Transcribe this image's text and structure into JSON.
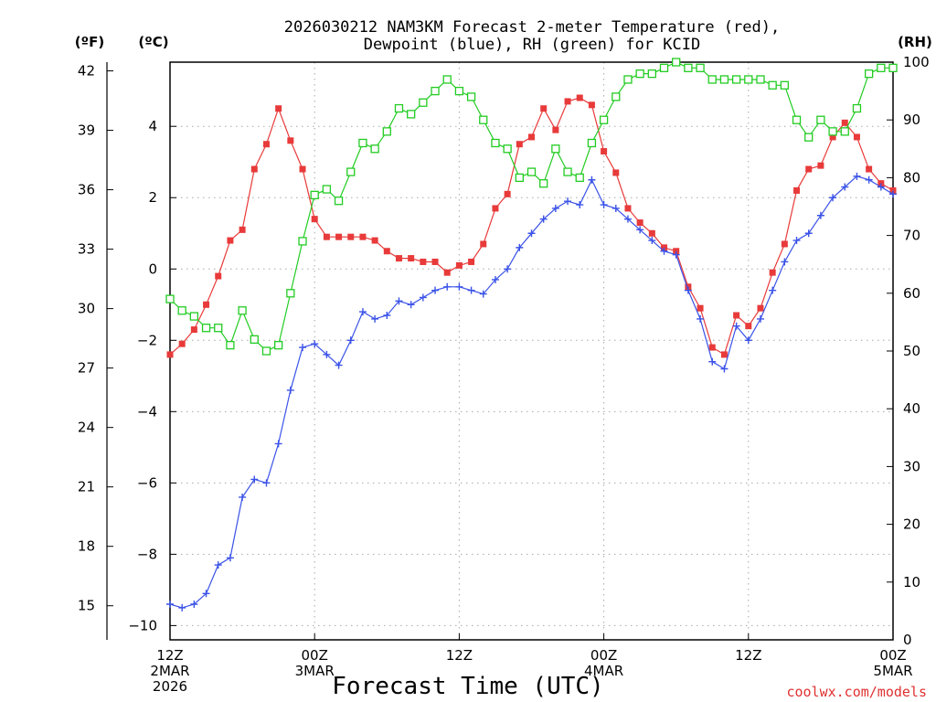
{
  "chart_data": {
    "type": "line",
    "title": [
      "2026030212 NAM3KM Forecast 2-meter Temperature (red),",
      "Dewpoint (blue), RH (green) for KCID"
    ],
    "xlabel": "Forecast Time (UTC)",
    "credit": "coolwx.com/models",
    "units": {
      "fahrenheit": "(ºF)",
      "celsius": "(ºC)",
      "rh": "(RH)"
    },
    "xlim": [
      0,
      60
    ],
    "xticks": [
      {
        "x": 0,
        "lines": [
          "12Z",
          "2MAR",
          "2026"
        ]
      },
      {
        "x": 12,
        "lines": [
          "00Z",
          "3MAR"
        ]
      },
      {
        "x": 24,
        "lines": [
          "12Z"
        ]
      },
      {
        "x": 36,
        "lines": [
          "00Z",
          "4MAR"
        ]
      },
      {
        "x": 48,
        "lines": [
          "12Z"
        ]
      },
      {
        "x": 60,
        "lines": [
          "00Z",
          "5MAR"
        ]
      }
    ],
    "ylim_c": [
      -10.4,
      5.8
    ],
    "yticks_c": [
      "4",
      "2",
      "0",
      "−2",
      "−4",
      "−6",
      "−8",
      "−10"
    ],
    "yticks_c_values": [
      4,
      2,
      0,
      -2,
      -4,
      -6,
      -8,
      -10
    ],
    "yticks_f": [
      "42",
      "39",
      "36",
      "33",
      "30",
      "27",
      "24",
      "21",
      "18",
      "15"
    ],
    "yticks_f_values": [
      42,
      39,
      36,
      33,
      30,
      27,
      24,
      21,
      18,
      15
    ],
    "ylim_rh": [
      0,
      100
    ],
    "yticks_rh": [
      "100",
      "90",
      "80",
      "70",
      "60",
      "50",
      "40",
      "30",
      "20",
      "10",
      "0"
    ],
    "yticks_rh_values": [
      100,
      90,
      80,
      70,
      60,
      50,
      40,
      30,
      20,
      10,
      0
    ],
    "grid": true,
    "series": [
      {
        "name": "Temperature",
        "axis": "celsius",
        "color": "#e83a3a",
        "marker": "filled-square",
        "values": [
          -2.4,
          -2.1,
          -1.7,
          -1.0,
          -0.2,
          0.8,
          1.1,
          2.8,
          3.5,
          4.5,
          3.6,
          2.8,
          1.4,
          0.9,
          0.9,
          0.9,
          0.9,
          0.8,
          0.5,
          0.3,
          0.3,
          0.2,
          0.2,
          -0.1,
          0.1,
          0.2,
          0.7,
          1.7,
          2.1,
          3.5,
          3.7,
          4.5,
          3.9,
          4.7,
          4.8,
          4.6,
          3.3,
          2.7,
          1.7,
          1.3,
          1.0,
          0.6,
          0.5,
          -0.5,
          -1.1,
          -2.2,
          -2.4,
          -1.3,
          -1.6,
          -1.1,
          -0.1,
          0.7,
          2.2,
          2.8,
          2.9,
          3.7,
          4.1,
          3.7,
          2.8,
          2.4,
          2.2
        ]
      },
      {
        "name": "Dewpoint",
        "axis": "celsius",
        "color": "#3a52e8",
        "marker": "plus",
        "values": [
          -9.4,
          -9.5,
          -9.4,
          -9.1,
          -8.3,
          -8.1,
          -6.4,
          -5.9,
          -6.0,
          -4.9,
          -3.4,
          -2.2,
          -2.1,
          -2.4,
          -2.7,
          -2.0,
          -1.2,
          -1.4,
          -1.3,
          -0.9,
          -1.0,
          -0.8,
          -0.6,
          -0.5,
          -0.5,
          -0.6,
          -0.7,
          -0.3,
          0.0,
          0.6,
          1.0,
          1.4,
          1.7,
          1.9,
          1.8,
          2.5,
          1.8,
          1.7,
          1.4,
          1.1,
          0.8,
          0.5,
          0.4,
          -0.6,
          -1.4,
          -2.6,
          -2.8,
          -1.6,
          -2.0,
          -1.4,
          -0.6,
          0.2,
          0.8,
          1.0,
          1.5,
          2.0,
          2.3,
          2.6,
          2.5,
          2.3,
          2.1
        ]
      },
      {
        "name": "RH",
        "axis": "rh",
        "color": "#22cc22",
        "marker": "open-square",
        "values": [
          59,
          57,
          56,
          54,
          54,
          51,
          57,
          52,
          50,
          51,
          60,
          69,
          77,
          78,
          76,
          81,
          86,
          85,
          88,
          92,
          91,
          93,
          95,
          97,
          95,
          94,
          90,
          86,
          85,
          80,
          81,
          79,
          85,
          81,
          80,
          86,
          90,
          94,
          97,
          98,
          98,
          99,
          100,
          99,
          99,
          97,
          97,
          97,
          97,
          97,
          96,
          96,
          90,
          87,
          90,
          88,
          88,
          92,
          98,
          99,
          99
        ]
      }
    ]
  }
}
